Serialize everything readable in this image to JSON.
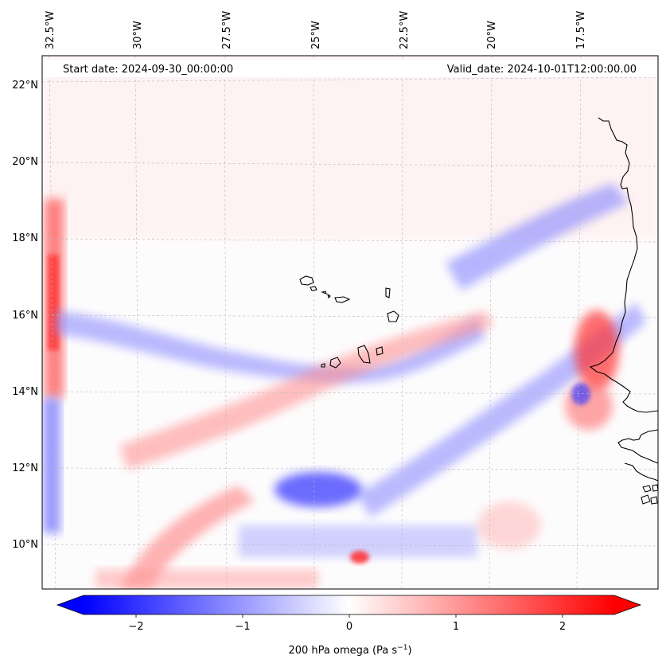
{
  "map": {
    "start_label": "Start date: 2024-09-30_00:00:00",
    "valid_label": "Valid_date: 2024-10-01T12:00:00.00",
    "lon_ticks": [
      "32.5°W",
      "30°W",
      "27.5°W",
      "25°W",
      "22.5°W",
      "20°W",
      "17.5°W"
    ],
    "lat_ticks": [
      "22°N",
      "20°N",
      "18°N",
      "16°N",
      "14°N",
      "12°N",
      "10°N"
    ],
    "extent": {
      "lon_min": -32.7,
      "lon_max": -15.6,
      "lat_min": 8.9,
      "lat_max": 22.8
    },
    "field_name": "200 hPa omega",
    "colormap": "bwr",
    "colors": {
      "negative": "#0000ff",
      "zero": "#ffffff",
      "positive": "#ff0000",
      "coastline": "#000000"
    }
  },
  "colorbar": {
    "ticks": [
      "−2",
      "−1",
      "0",
      "1",
      "2"
    ],
    "range": [
      -2.6,
      2.6
    ],
    "label": "200 hPa omega (Pa s",
    "label_sup": "−1",
    "label_end": ")"
  }
}
